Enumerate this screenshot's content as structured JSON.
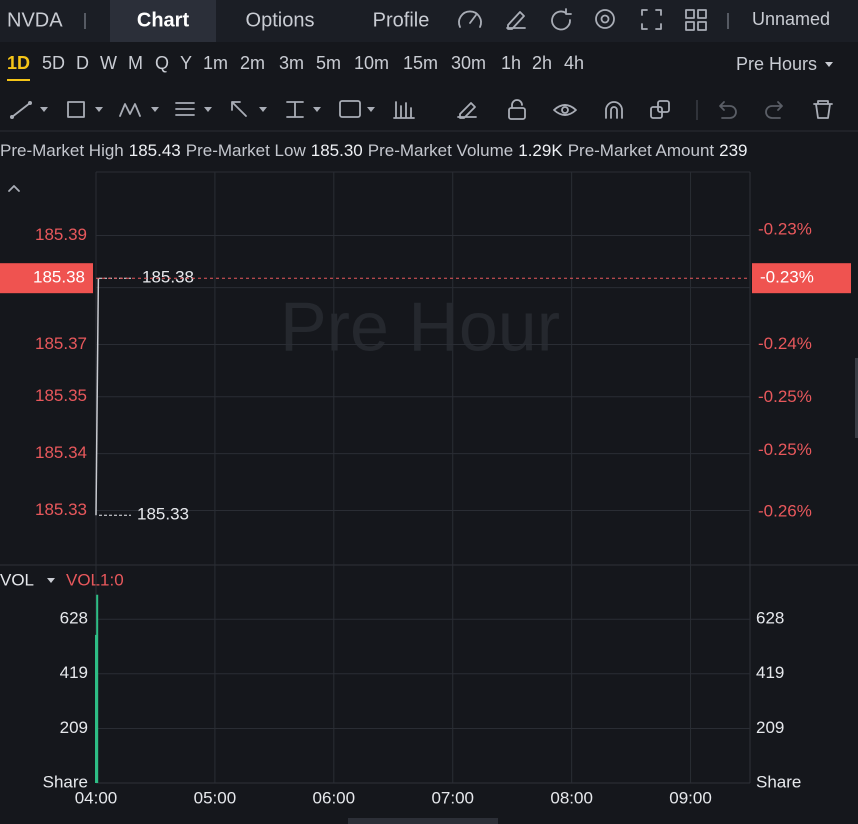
{
  "header": {
    "symbol": "NVDA",
    "tabs": [
      "Chart",
      "Options",
      "Profile"
    ],
    "layout_name": "Unnamed"
  },
  "timeframes": [
    "1D",
    "5D",
    "D",
    "W",
    "M",
    "Q",
    "Y",
    "1m",
    "2m",
    "3m",
    "5m",
    "10m",
    "15m",
    "30m",
    "1h",
    "2h",
    "4h"
  ],
  "session": "Pre Hours",
  "info": [
    {
      "label": "Pre-Market High",
      "value": "185.43"
    },
    {
      "label": "Pre-Market Low",
      "value": "185.30"
    },
    {
      "label": "Pre-Market Volume",
      "value": "1.29K"
    },
    {
      "label": "Pre-Market Amount",
      "value": "239"
    }
  ],
  "chart_data": [
    {
      "type": "line",
      "watermark": "Pre Hour",
      "x": [
        4,
        4.02
      ],
      "values": [
        185.33,
        185.38
      ],
      "color": "#c8cad0",
      "ylim": [
        185.3195,
        185.4024
      ],
      "yticks": [
        {
          "value": 185.389,
          "label": "185.39"
        },
        {
          "value": 185.378,
          "label": "185.38"
        },
        {
          "value": 185.366,
          "label": "185.37"
        },
        {
          "value": 185.355,
          "label": "185.35"
        },
        {
          "value": 185.343,
          "label": "185.34"
        },
        {
          "value": 185.331,
          "label": "185.33"
        }
      ],
      "y2lim": [
        -0.264,
        -0.2194
      ],
      "y2ticks": [
        {
          "value": -0.226,
          "label": "-0.23%"
        },
        {
          "value": -0.232,
          "label": "-0.23%"
        },
        {
          "value": -0.239,
          "label": "-0.24%"
        },
        {
          "value": -0.245,
          "label": "-0.25%"
        },
        {
          "value": -0.251,
          "label": "-0.25%"
        },
        {
          "value": -0.258,
          "label": "-0.26%"
        }
      ],
      "last_price": 185.38,
      "last_change": {
        "value": -0.23,
        "label": "-0.23%"
      },
      "annotations": [
        185.38,
        185.33
      ],
      "grid": true
    },
    {
      "type": "bar",
      "indicator": "VOL",
      "subtitle": "VOL1:0",
      "x": [
        4,
        4.01
      ],
      "values": [
        568,
        722
      ],
      "color": "#2ebd85",
      "ylim": [
        0,
        836
      ],
      "yticks": [
        628,
        419,
        209,
        {
          "value": 0,
          "label": "Share"
        }
      ],
      "xlim": [
        4,
        9.5
      ],
      "xticks": [
        {
          "value": 4,
          "label": "04:00"
        },
        {
          "value": 5,
          "label": "05:00"
        },
        {
          "value": 6,
          "label": "06:00"
        },
        {
          "value": 7,
          "label": "07:00"
        },
        {
          "value": 8,
          "label": "08:00"
        },
        {
          "value": 9,
          "label": "09:00"
        }
      ],
      "grid": true
    }
  ]
}
